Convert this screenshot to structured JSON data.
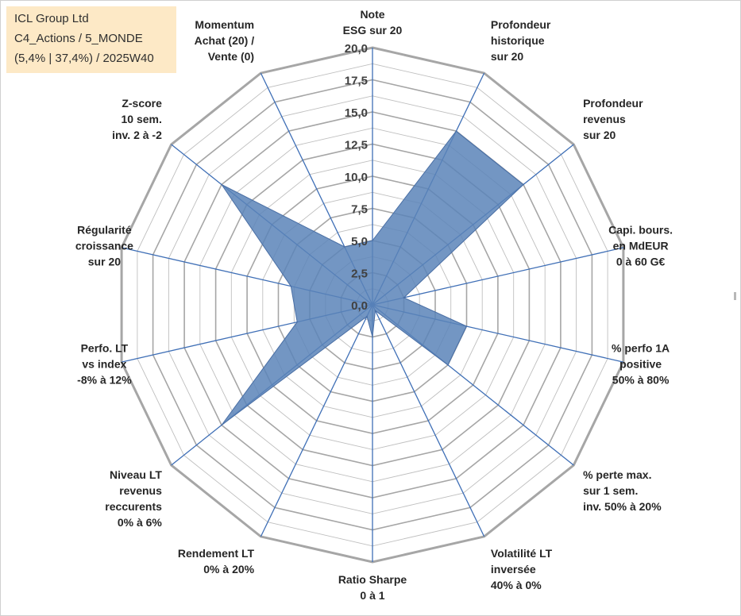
{
  "info": {
    "line1": "ICL Group Ltd",
    "line2": "C4_Actions / 5_MONDE",
    "line3": "(5,4% | 37,4%) / 2025W40"
  },
  "chart_data": {
    "type": "radar",
    "rmin": 0,
    "rmax": 20,
    "tick_step": 2.5,
    "tick_labels": [
      "0,0",
      "2,5",
      "5,0",
      "7,5",
      "10,0",
      "12,5",
      "15,0",
      "17,5",
      "20,0"
    ],
    "categories": [
      "Note\nESG sur 20",
      "Profondeur\nhistorique\nsur 20",
      "Profondeur\nrevenus\nsur 20",
      "Capi. bours.\nen MdEUR\n0 à 60 G€",
      "% perfo 1A\npositive\n50% à 80%",
      "% perte max.\nsur 1 sem.\ninv. 50% à 20%",
      "Volatilité LT\ninversée\n40% à 0%",
      "Ratio Sharpe\n0 à 1",
      "Rendement LT\n0% à 20%",
      "Niveau LT\nrevenus\nreccurents\n0% à 6%",
      "Perfo. LT\nvs index\n-8% à 12%",
      "Régularité\ncroissance\nsur 20",
      "Z-score\n10 sem.\ninv. 2 à -2",
      "Momentum\nAchat (20) /\nVente (0)"
    ],
    "values": [
      5.0,
      15.0,
      15.0,
      2.5,
      7.5,
      7.5,
      0.5,
      2.5,
      1.0,
      15.0,
      6.0,
      6.5,
      15.0,
      5.0
    ],
    "series_color": "#5b84b8",
    "spoke_color": "#3f6fb6",
    "grid_color": "#bfbfbf",
    "grid_major_color": "#a6a6a6"
  }
}
